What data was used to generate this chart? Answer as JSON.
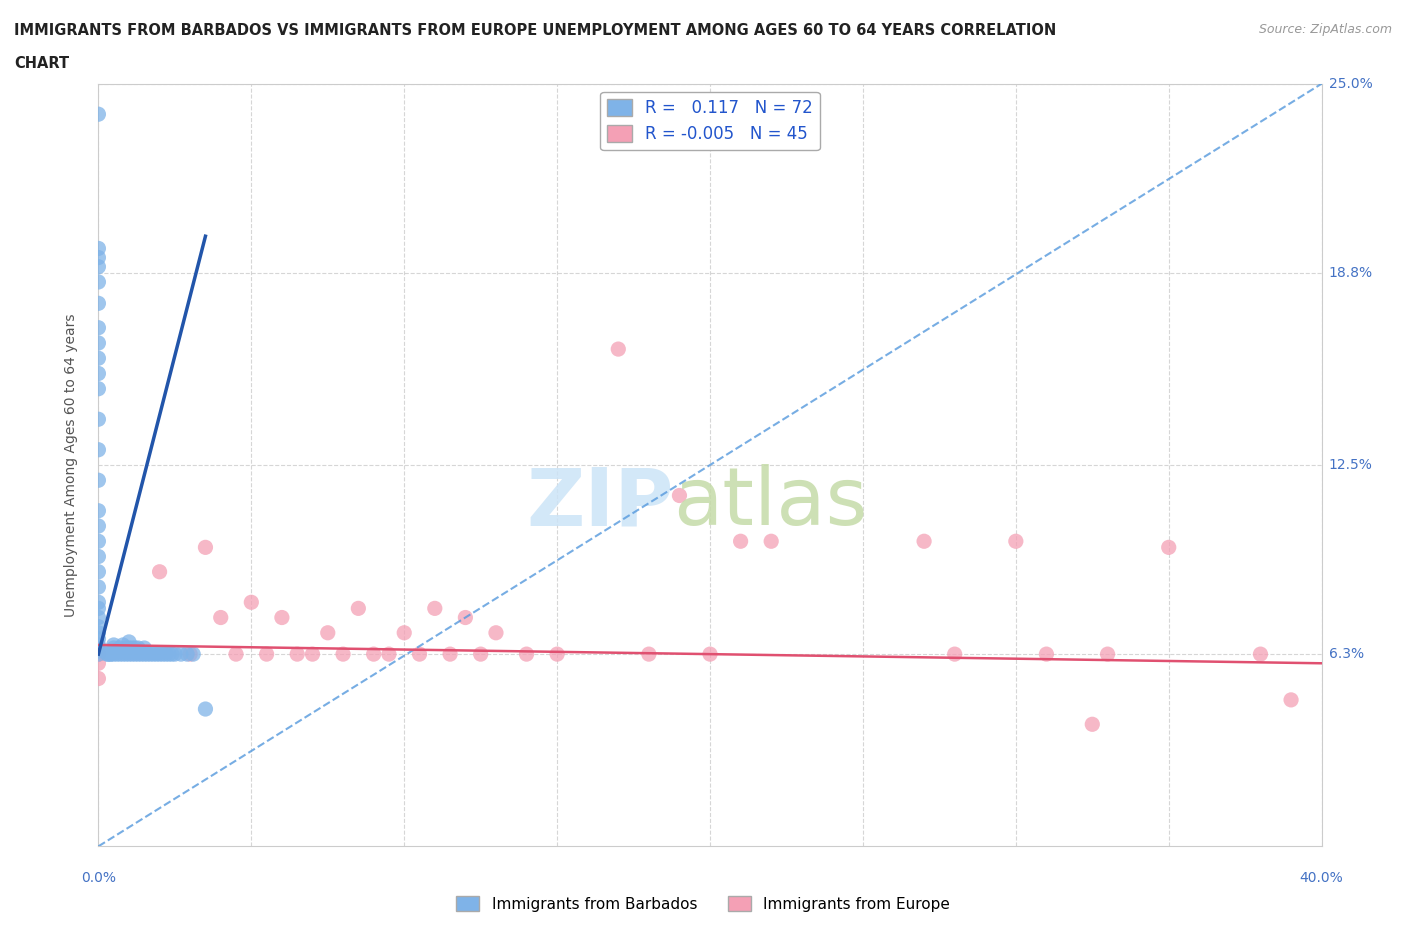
{
  "title_line1": "IMMIGRANTS FROM BARBADOS VS IMMIGRANTS FROM EUROPE UNEMPLOYMENT AMONG AGES 60 TO 64 YEARS CORRELATION",
  "title_line2": "CHART",
  "source": "Source: ZipAtlas.com",
  "ylabel": "Unemployment Among Ages 60 to 64 years",
  "xlim": [
    0.0,
    0.4
  ],
  "ylim": [
    0.0,
    0.25
  ],
  "xticks": [
    0.0,
    0.05,
    0.1,
    0.15,
    0.2,
    0.25,
    0.3,
    0.35,
    0.4
  ],
  "ytick_positions": [
    0.063,
    0.125,
    0.188,
    0.25
  ],
  "ytick_labels": [
    "6.3%",
    "12.5%",
    "18.8%",
    "25.0%"
  ],
  "grid_color": "#cccccc",
  "barbados_color": "#7fb3e8",
  "barbados_edge": "#5590cc",
  "europe_color": "#f4a0b5",
  "europe_edge": "#e06080",
  "barbados_R": 0.117,
  "barbados_N": 72,
  "europe_R": -0.005,
  "europe_N": 45,
  "barbados_trend_color": "#5599dd",
  "europe_trend_color": "#e05070",
  "barbados_points_x": [
    0.0,
    0.0,
    0.0,
    0.0,
    0.0,
    0.0,
    0.0,
    0.0,
    0.0,
    0.0,
    0.0,
    0.0,
    0.0,
    0.0,
    0.0,
    0.0,
    0.0,
    0.0,
    0.0,
    0.0,
    0.0,
    0.0,
    0.0,
    0.0,
    0.0,
    0.0,
    0.0,
    0.0,
    0.0,
    0.0,
    0.003,
    0.003,
    0.004,
    0.004,
    0.005,
    0.005,
    0.005,
    0.005,
    0.006,
    0.006,
    0.007,
    0.007,
    0.008,
    0.008,
    0.009,
    0.009,
    0.01,
    0.01,
    0.01,
    0.011,
    0.011,
    0.012,
    0.012,
    0.013,
    0.013,
    0.014,
    0.015,
    0.015,
    0.016,
    0.017,
    0.018,
    0.019,
    0.02,
    0.021,
    0.022,
    0.023,
    0.024,
    0.025,
    0.027,
    0.029,
    0.031,
    0.035
  ],
  "barbados_points_y": [
    0.24,
    0.196,
    0.193,
    0.19,
    0.185,
    0.178,
    0.17,
    0.165,
    0.16,
    0.155,
    0.15,
    0.14,
    0.13,
    0.12,
    0.11,
    0.105,
    0.1,
    0.095,
    0.09,
    0.085,
    0.08,
    0.078,
    0.075,
    0.072,
    0.07,
    0.068,
    0.066,
    0.065,
    0.064,
    0.063,
    0.063,
    0.063,
    0.063,
    0.063,
    0.063,
    0.064,
    0.065,
    0.066,
    0.063,
    0.064,
    0.063,
    0.065,
    0.063,
    0.066,
    0.063,
    0.065,
    0.063,
    0.065,
    0.067,
    0.063,
    0.065,
    0.063,
    0.065,
    0.063,
    0.065,
    0.063,
    0.063,
    0.065,
    0.063,
    0.063,
    0.063,
    0.063,
    0.063,
    0.063,
    0.063,
    0.063,
    0.063,
    0.063,
    0.063,
    0.063,
    0.063,
    0.045
  ],
  "europe_points_x": [
    0.0,
    0.0,
    0.0,
    0.0,
    0.0,
    0.0,
    0.02,
    0.03,
    0.035,
    0.04,
    0.045,
    0.05,
    0.055,
    0.06,
    0.065,
    0.07,
    0.075,
    0.08,
    0.085,
    0.09,
    0.095,
    0.1,
    0.105,
    0.11,
    0.115,
    0.12,
    0.125,
    0.13,
    0.14,
    0.15,
    0.17,
    0.18,
    0.19,
    0.2,
    0.21,
    0.22,
    0.27,
    0.28,
    0.3,
    0.31,
    0.33,
    0.35,
    0.38,
    0.39,
    0.325
  ],
  "europe_points_y": [
    0.063,
    0.063,
    0.063,
    0.063,
    0.06,
    0.055,
    0.09,
    0.063,
    0.098,
    0.075,
    0.063,
    0.08,
    0.063,
    0.075,
    0.063,
    0.063,
    0.07,
    0.063,
    0.078,
    0.063,
    0.063,
    0.07,
    0.063,
    0.078,
    0.063,
    0.075,
    0.063,
    0.07,
    0.063,
    0.063,
    0.163,
    0.063,
    0.115,
    0.063,
    0.1,
    0.1,
    0.1,
    0.063,
    0.1,
    0.063,
    0.063,
    0.098,
    0.063,
    0.048,
    0.04
  ],
  "barbados_trend_x": [
    0.0,
    0.4
  ],
  "barbados_trend_y_start": 0.063,
  "barbados_trend_y_end": 0.25,
  "europe_trend_y": 0.063
}
